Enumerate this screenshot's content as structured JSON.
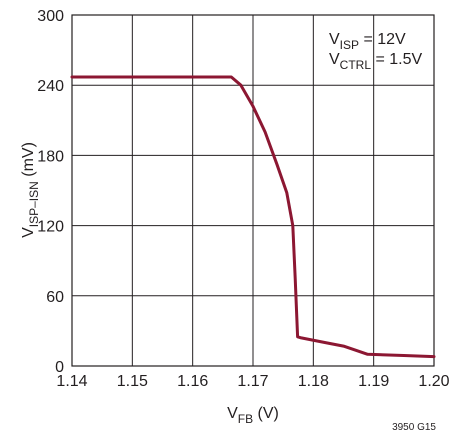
{
  "chart_data": {
    "type": "line",
    "xlabel": {
      "main": "V",
      "sub": "FB",
      "suffix": " (V)"
    },
    "ylabel": {
      "main": "V",
      "sub": "ISP–ISN",
      "suffix": " (mV)"
    },
    "xlim": [
      1.14,
      1.2
    ],
    "ylim": [
      0,
      300
    ],
    "xticks": [
      "1.14",
      "1.15",
      "1.16",
      "1.17",
      "1.18",
      "1.19",
      "1.20"
    ],
    "yticks": [
      "0",
      "60",
      "120",
      "180",
      "240",
      "300"
    ],
    "grid": true,
    "annotations": [
      {
        "main": "V",
        "sub": "ISP",
        "suffix": " = 12V"
      },
      {
        "main": "V",
        "sub": "CTRL",
        "suffix": " = 1.5V"
      }
    ],
    "figure_id": "3950 G15",
    "series": [
      {
        "color": "#8c1732",
        "x": [
          1.14,
          1.1664,
          1.168,
          1.17,
          1.172,
          1.174,
          1.1756,
          1.1766,
          1.177,
          1.1774,
          1.178,
          1.182,
          1.185,
          1.187,
          1.189,
          1.195,
          1.2
        ],
        "y": [
          247,
          247,
          240,
          222,
          200,
          172,
          148,
          120,
          75,
          25,
          24,
          20,
          17,
          13.5,
          10,
          9,
          8
        ]
      }
    ]
  }
}
